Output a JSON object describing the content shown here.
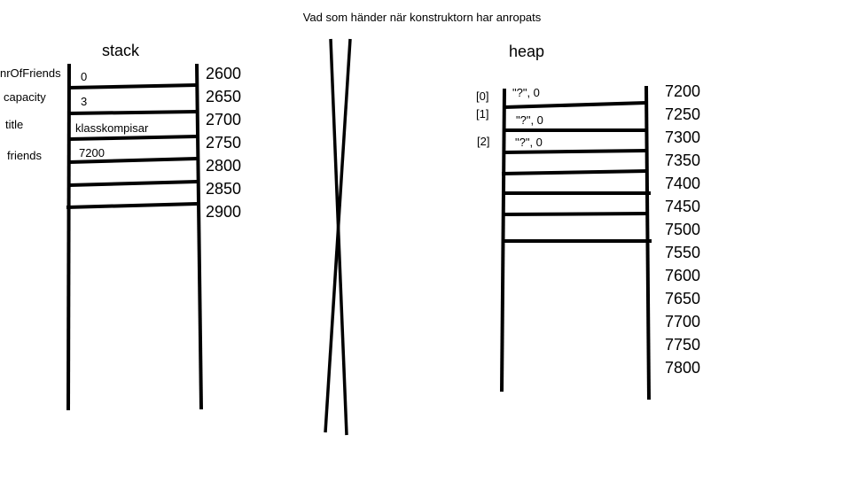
{
  "title": "Vad som händer när konstruktorn har anropats",
  "stack": {
    "heading": "stack",
    "labels": [
      "nrOfFriends",
      "capacity",
      "title",
      "friends"
    ],
    "values": [
      "0",
      "3",
      "klasskompisar",
      "7200"
    ],
    "addresses": [
      "2600",
      "2650",
      "2700",
      "2750",
      "2800",
      "2850",
      "2900"
    ]
  },
  "heap": {
    "heading": "heap",
    "indices": [
      "[0]",
      "[1]",
      "[2]"
    ],
    "values": [
      "\"?\", 0",
      "\"?\", 0",
      "\"?\", 0"
    ],
    "addresses": [
      "7200",
      "7250",
      "7300",
      "7350",
      "7400",
      "7450",
      "7500",
      "7550",
      "7600",
      "7650",
      "7700",
      "7750",
      "7800"
    ]
  },
  "colors": {
    "ink": "#000000",
    "background": "#ffffff"
  }
}
